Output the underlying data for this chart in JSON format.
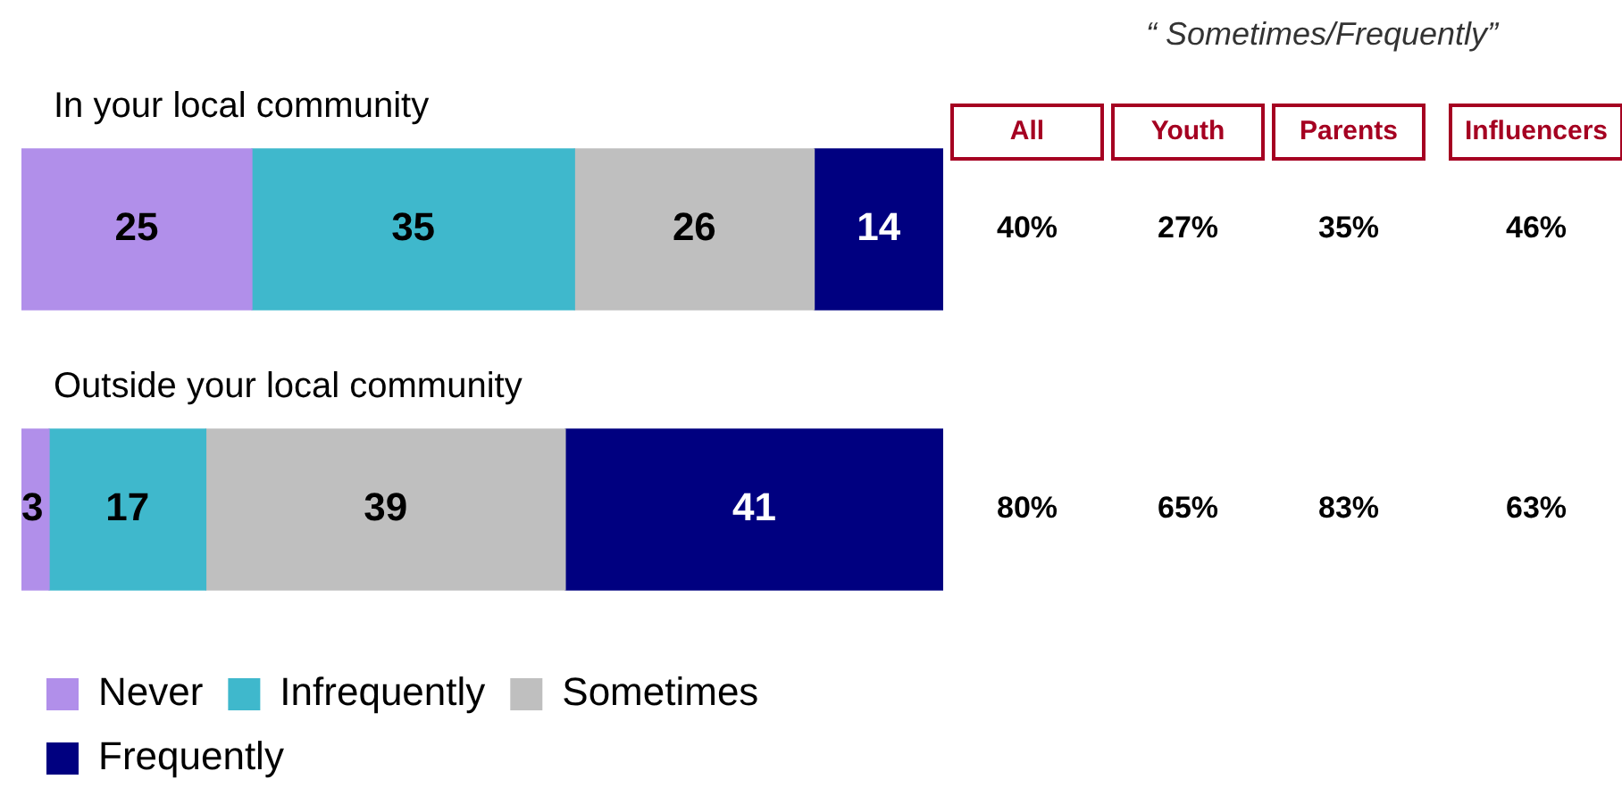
{
  "chart_data": {
    "type": "bar",
    "orientation": "horizontal",
    "stacked": true,
    "data_labels": true,
    "legend": "bottom",
    "categories": [
      "In your local community",
      "Outside your local community"
    ],
    "series": [
      {
        "name": "Never",
        "color": "#b18fea",
        "values": [
          25,
          3
        ]
      },
      {
        "name": "Infrequently",
        "color": "#3fb8cc",
        "values": [
          35,
          17
        ]
      },
      {
        "name": "Sometimes",
        "color": "#bfbfbf",
        "values": [
          26,
          39
        ]
      },
      {
        "name": "Frequently",
        "color": "#000080",
        "values": [
          14,
          41
        ]
      }
    ],
    "annotations": [
      "“ Sometimes/Frequently”",
      "All",
      "Youth",
      "Parents",
      "Influencers",
      "40%",
      "27%",
      "35%",
      "46%",
      "80%",
      "65%",
      "83%",
      "63%"
    ]
  }
}
